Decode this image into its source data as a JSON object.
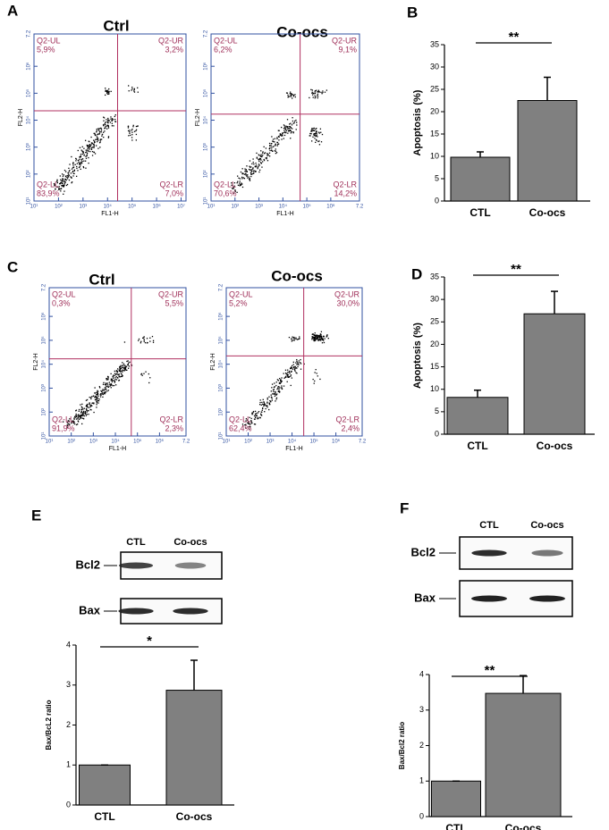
{
  "chart_data": [
    {
      "type": "flow",
      "label": "A",
      "plots": [
        {
          "title": "Ctrl",
          "xlabel": "FL1-H",
          "ylabel": "FL2-H",
          "quadrants": [
            "Q2-UL",
            "Q2-UR",
            "Q2-LL",
            "Q2-LR"
          ],
          "values": [
            5.9,
            3.2,
            83.9,
            7.0
          ],
          "value_labels": [
            "5,9%",
            "3,2%",
            "83,9%",
            "7,0%"
          ],
          "xlim": [
            1,
            7.2
          ],
          "xticks": [
            {
              "value": 1,
              "label": "10¹"
            },
            {
              "value": 2,
              "label": "10²"
            },
            {
              "value": 3,
              "label": "10³"
            },
            {
              "value": 4,
              "label": "10⁴"
            },
            {
              "value": 5,
              "label": "10⁵"
            },
            {
              "value": 6,
              "label": "10⁶"
            },
            {
              "value": 7,
              "label": "10⁷"
            }
          ],
          "ylim": [
            1,
            7.2
          ],
          "yticks": [
            {
              "value": 1,
              "label": "10¹"
            },
            {
              "value": 2,
              "label": "10²"
            },
            {
              "value": 3,
              "label": "10³"
            },
            {
              "value": 4,
              "label": "10⁴"
            },
            {
              "value": 5,
              "label": "10⁵"
            },
            {
              "value": 6,
              "label": "10⁶"
            },
            7.2
          ]
        },
        {
          "title": "Co-ocs",
          "xlabel": "FL1-H",
          "ylabel": "FL2-H",
          "quadrants": [
            "Q2-UL",
            "Q2-UR",
            "Q2-LL",
            "Q2-LR"
          ],
          "values": [
            6.2,
            9.1,
            70.6,
            14.2
          ],
          "value_labels": [
            "6,2%",
            "9,1%",
            "70,6%",
            "14,2%"
          ],
          "xlim": [
            1,
            7.2
          ],
          "xticks": [
            {
              "value": 1,
              "label": "10¹"
            },
            {
              "value": 2,
              "label": "10²"
            },
            {
              "value": 3,
              "label": "10³"
            },
            {
              "value": 4,
              "label": "10⁴"
            },
            {
              "value": 5,
              "label": "10⁵"
            },
            {
              "value": 6,
              "label": "10⁶"
            },
            7.2
          ],
          "ylim": [
            1,
            7.2
          ],
          "yticks": [
            {
              "value": 1,
              "label": "10¹"
            },
            {
              "value": 2,
              "label": "10²"
            },
            {
              "value": 3,
              "label": "10³"
            },
            {
              "value": 4,
              "label": "10⁴"
            },
            {
              "value": 5,
              "label": "10⁵"
            },
            {
              "value": 6,
              "label": "10⁶"
            },
            7.2
          ]
        }
      ]
    },
    {
      "type": "bar",
      "label": "B",
      "categories": [
        "CTL",
        "Co-ocs"
      ],
      "values": [
        9.8,
        22.5
      ],
      "errors": [
        1.2,
        5.2
      ],
      "color": "#808080",
      "ylim": [
        0,
        35
      ],
      "yticks": [
        0,
        5,
        10,
        15,
        20,
        25,
        30,
        35
      ],
      "ylabel": "Apoptosis (%)",
      "significance": "**"
    },
    {
      "type": "flow",
      "label": "C",
      "plots": [
        {
          "title": "Ctrl",
          "xlabel": "FL1-H",
          "ylabel": "FL2-H",
          "quadrants": [
            "Q2-UL",
            "Q2-UR",
            "Q2-LL",
            "Q2-LR"
          ],
          "values": [
            0.3,
            5.5,
            91.9,
            2.3
          ],
          "value_labels": [
            "0,3%",
            "5,5%",
            "91,9%",
            "2,3%"
          ],
          "xlim": [
            1,
            7.2
          ],
          "xticks": [
            {
              "value": 1,
              "label": "10¹"
            },
            {
              "value": 2,
              "label": "10²"
            },
            {
              "value": 3,
              "label": "10³"
            },
            {
              "value": 4,
              "label": "10⁴"
            },
            {
              "value": 5,
              "label": "10⁵"
            },
            {
              "value": 6,
              "label": "10⁶"
            },
            7.2
          ],
          "ylim": [
            1,
            7.2
          ],
          "yticks": [
            {
              "value": 1,
              "label": "10¹"
            },
            {
              "value": 2,
              "label": "10²"
            },
            {
              "value": 3,
              "label": "10³"
            },
            {
              "value": 4,
              "label": "10⁴"
            },
            {
              "value": 5,
              "label": "10⁵"
            },
            {
              "value": 6,
              "label": "10⁶"
            },
            7.2
          ]
        },
        {
          "title": "Co-ocs",
          "xlabel": "FL1-H",
          "ylabel": "FL2-H",
          "quadrants": [
            "Q2-UL",
            "Q2-UR",
            "Q2-LL",
            "Q2-LR"
          ],
          "values": [
            5.2,
            30.0,
            62.4,
            2.4
          ],
          "value_labels": [
            "5,2%",
            "30,0%",
            "62,4%",
            "2,4%"
          ],
          "xlim": [
            1,
            7.2
          ],
          "xticks": [
            {
              "value": 1,
              "label": "10¹"
            },
            {
              "value": 2,
              "label": "10²"
            },
            {
              "value": 3,
              "label": "10³"
            },
            {
              "value": 4,
              "label": "10⁴"
            },
            {
              "value": 5,
              "label": "10⁵"
            },
            {
              "value": 6,
              "label": "10⁶"
            },
            7.2
          ],
          "ylim": [
            1,
            7.2
          ],
          "yticks": [
            {
              "value": 1,
              "label": "10¹"
            },
            {
              "value": 2,
              "label": "10²"
            },
            {
              "value": 3,
              "label": "10³"
            },
            {
              "value": 4,
              "label": "10⁴"
            },
            {
              "value": 5,
              "label": "10⁵"
            },
            {
              "value": 6,
              "label": "10⁶"
            },
            7.2
          ]
        }
      ]
    },
    {
      "type": "bar",
      "label": "D",
      "categories": [
        "CTL",
        "Co-ocs"
      ],
      "values": [
        8.2,
        26.8
      ],
      "errors": [
        1.6,
        5.0
      ],
      "color": "#808080",
      "ylim": [
        0,
        35
      ],
      "yticks": [
        0,
        5,
        10,
        15,
        20,
        25,
        30,
        35
      ],
      "ylabel": "Apoptosis (%)",
      "significance": "**"
    },
    {
      "type": "bar",
      "label": "E",
      "blot": {
        "lanes": [
          "CTL",
          "Co-ocs"
        ],
        "rows": [
          "Bcl2",
          "Bax"
        ]
      },
      "categories": [
        "CTL",
        "Co-ocs"
      ],
      "values": [
        1,
        2.87
      ],
      "errors": [
        0,
        0.75
      ],
      "color": "#808080",
      "ylim": [
        0,
        4
      ],
      "yticks": [
        0,
        1,
        2,
        3,
        4
      ],
      "ylabel": "Bax/BcL2 ratio",
      "significance": "*"
    },
    {
      "type": "bar",
      "label": "F",
      "blot": {
        "lanes": [
          "CTL",
          "Co-ocs"
        ],
        "rows": [
          "Bcl2",
          "Bax"
        ]
      },
      "categories": [
        "CTL",
        "Co-ocs"
      ],
      "values": [
        1,
        3.47
      ],
      "errors": [
        0,
        0.5
      ],
      "color": "#808080",
      "ylim": [
        0,
        4
      ],
      "yticks": [
        0,
        1,
        2,
        3,
        4
      ],
      "ylabel": "Bax/Bcl2 ratio",
      "significance": "**"
    }
  ]
}
